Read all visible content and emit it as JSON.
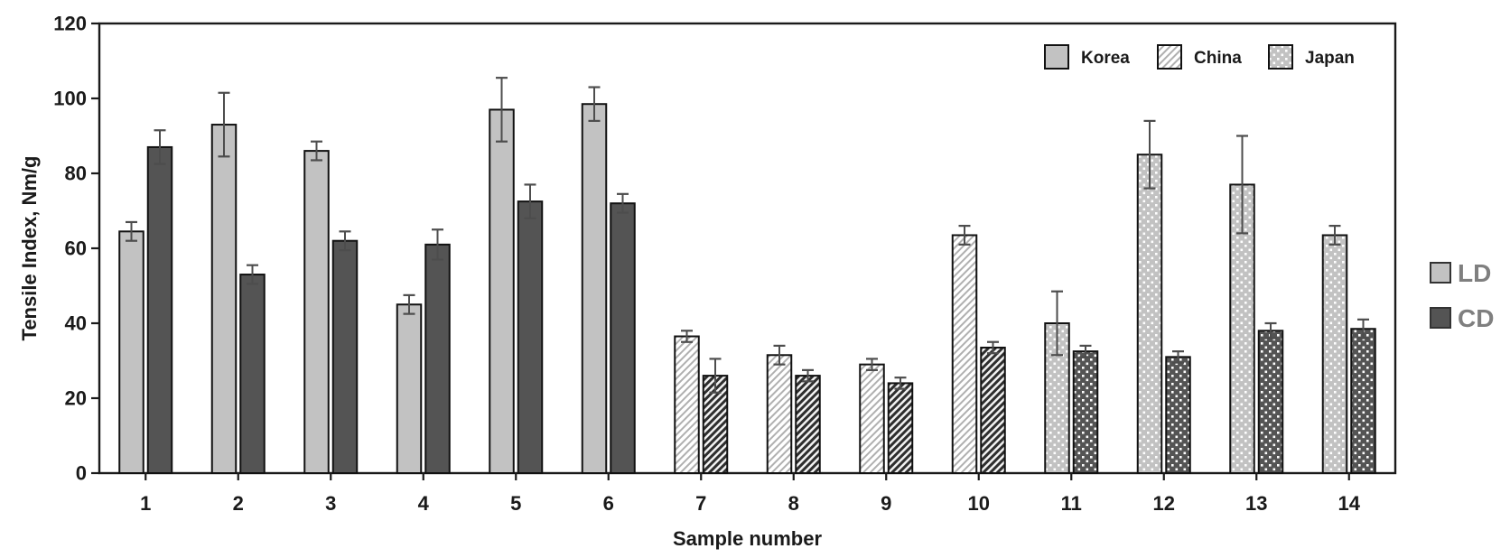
{
  "chart_data": {
    "type": "bar",
    "title": "",
    "xlabel": "Sample number",
    "ylabel": "Tensile Index, Nm/g",
    "ylim": [
      0,
      120
    ],
    "yticks": [
      0,
      20,
      40,
      60,
      80,
      100,
      120
    ],
    "categories": [
      "1",
      "2",
      "3",
      "4",
      "5",
      "6",
      "7",
      "8",
      "9",
      "10",
      "11",
      "12",
      "13",
      "14"
    ],
    "country_by_sample": [
      "Korea",
      "Korea",
      "Korea",
      "Korea",
      "Korea",
      "Korea",
      "China",
      "China",
      "China",
      "China",
      "Japan",
      "Japan",
      "Japan",
      "Japan"
    ],
    "series": [
      {
        "name": "LD",
        "values": [
          64.5,
          93,
          86,
          45,
          97,
          98.5,
          36.5,
          31.5,
          29,
          63.5,
          40,
          85,
          77,
          63.5
        ],
        "errors": [
          2.5,
          8.5,
          2.5,
          2.5,
          8.5,
          4.5,
          1.5,
          2.5,
          1.5,
          2.5,
          8.5,
          9,
          13,
          2.5
        ]
      },
      {
        "name": "CD",
        "values": [
          87,
          53,
          62,
          61,
          72.5,
          72,
          26,
          26,
          24,
          33.5,
          32.5,
          31,
          38,
          38.5
        ],
        "errors": [
          4.5,
          2.5,
          2.5,
          4,
          4.5,
          2.5,
          4.5,
          1.5,
          1.5,
          1.5,
          1.5,
          1.5,
          2,
          2.5
        ]
      }
    ],
    "pattern_legend": {
      "position": "top-right-inside",
      "items": [
        {
          "label": "Korea",
          "pattern": "solid"
        },
        {
          "label": "China",
          "pattern": "hatch"
        },
        {
          "label": "Japan",
          "pattern": "dots"
        }
      ]
    },
    "side_legend": {
      "position": "right-outside",
      "items": [
        {
          "label": "LD",
          "tone": "light"
        },
        {
          "label": "CD",
          "tone": "dark"
        }
      ]
    },
    "grid": "off",
    "colors": {
      "bar_light": "#c2c2c2",
      "bar_dark": "#545454",
      "bar_border": "#111111",
      "hatch_light_line": "#b0b0b0",
      "hatch_dark_line": "#2e2e2e",
      "error_bar": "#4d4d4d",
      "axis_text": "#1a1a1a",
      "side_legend_text": "#7f7f7f",
      "plot_border": "#1a1a1a"
    }
  }
}
